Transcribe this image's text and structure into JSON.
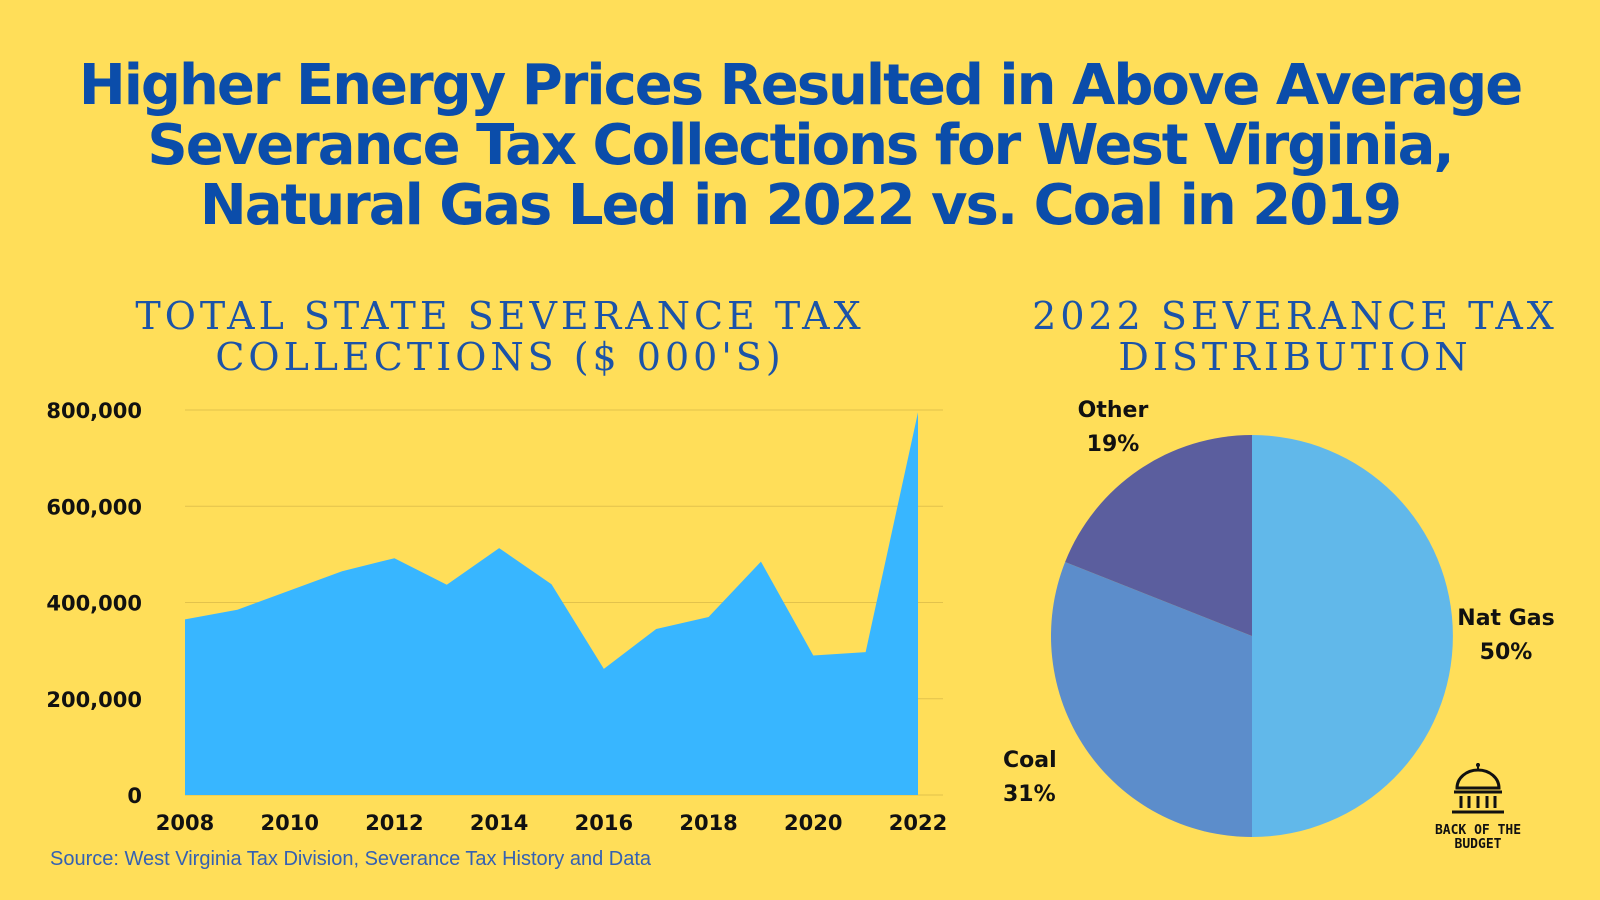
{
  "title_lines": [
    "Higher Energy Prices Resulted in Above Average",
    "Severance Tax Collections for West Virginia,",
    "Natural Gas Led in 2022 vs. Coal in 2019"
  ],
  "source": "Source: West Virginia Tax Division, Severance Tax History and Data",
  "logo": {
    "line1": "BACK OF THE",
    "line2": "BUDGET",
    "icon": "capitol-dome-icon"
  },
  "colors": {
    "background": "#FFDE59",
    "title": "#0B4DAA",
    "area": "#38B6FF",
    "gridline": "#E2C24C"
  },
  "chart_data": [
    {
      "type": "area",
      "title_lines": [
        "TOTAL STATE SEVERANCE TAX",
        "COLLECTIONS ($ 000'S)"
      ],
      "x": [
        2008,
        2009,
        2010,
        2011,
        2012,
        2013,
        2014,
        2015,
        2016,
        2017,
        2018,
        2019,
        2020,
        2021,
        2022
      ],
      "values": [
        365000,
        385000,
        425000,
        465000,
        492000,
        437000,
        513000,
        438000,
        262000,
        345000,
        370000,
        485000,
        290000,
        297000,
        795000
      ],
      "ylim": [
        0,
        800000
      ],
      "yticks": [
        0,
        200000,
        400000,
        600000,
        800000
      ],
      "ytick_labels": [
        "0",
        "200,000",
        "400,000",
        "600,000",
        "800,000"
      ],
      "xticks": [
        2008,
        2010,
        2012,
        2014,
        2016,
        2018,
        2020,
        2022
      ],
      "xtick_labels": [
        "2008",
        "2010",
        "2012",
        "2014",
        "2016",
        "2018",
        "2020",
        "2022"
      ],
      "grid": true,
      "color": "#38B6FF"
    },
    {
      "type": "pie",
      "title_lines": [
        "2022 SEVERANCE TAX",
        "DISTRIBUTION"
      ],
      "slices": [
        {
          "label": "Nat Gas",
          "value": 50,
          "pct_label": "50%",
          "color": "#61B8EA"
        },
        {
          "label": "Coal",
          "value": 31,
          "pct_label": "31%",
          "color": "#5C8DCB"
        },
        {
          "label": "Other",
          "value": 19,
          "pct_label": "19%",
          "color": "#5B5E9E"
        }
      ]
    }
  ]
}
